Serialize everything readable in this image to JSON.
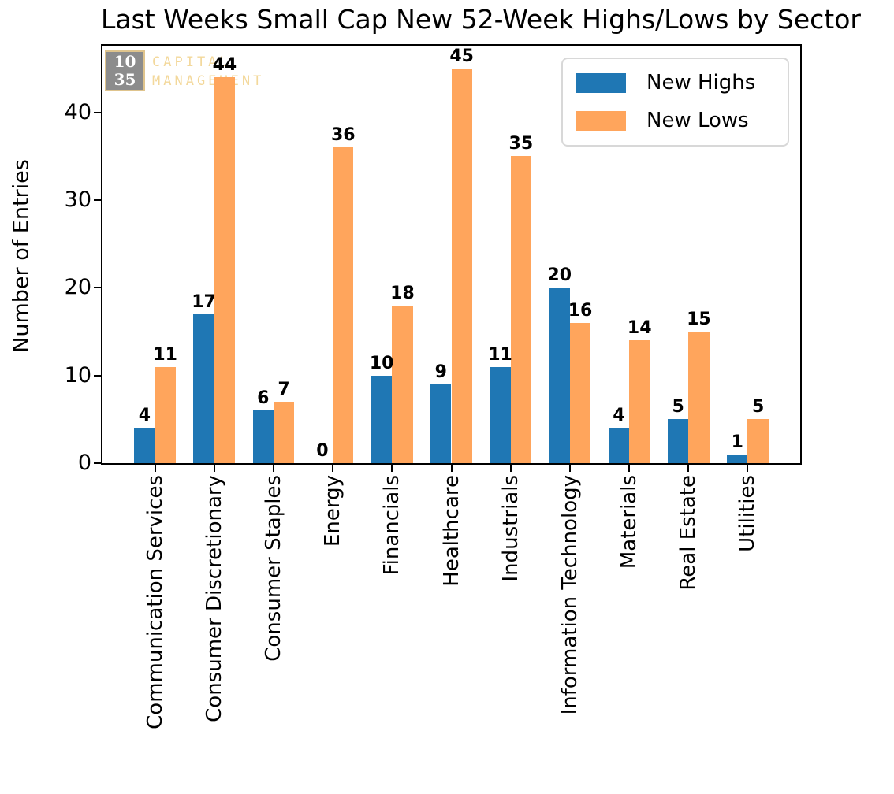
{
  "chart_data": {
    "type": "bar",
    "title": "Last Weeks Small Cap New 52-Week Highs/Lows by Sector",
    "ylabel": "Number of Entries",
    "xlabel": "",
    "categories": [
      "Communication Services",
      "Consumer Discretionary",
      "Consumer Staples",
      "Energy",
      "Financials",
      "Healthcare",
      "Industrials",
      "Information Technology",
      "Materials",
      "Real Estate",
      "Utilities"
    ],
    "series": [
      {
        "name": "New Highs",
        "color": "#1f77b4",
        "values": [
          4,
          17,
          6,
          0,
          10,
          9,
          11,
          20,
          4,
          5,
          1
        ]
      },
      {
        "name": "New Lows",
        "color": "#ffa55c",
        "values": [
          11,
          44,
          7,
          36,
          18,
          45,
          35,
          16,
          14,
          15,
          5
        ]
      }
    ],
    "yticks": [
      0,
      10,
      20,
      30,
      40
    ],
    "ylim": [
      0,
      47.6
    ],
    "xlim": [
      -0.885,
      10.885
    ],
    "bar_width_units": 0.35,
    "grid": false,
    "legend_position": "upper right",
    "bar_value_labels_shown": true
  },
  "watermark": {
    "box_line1": "10",
    "box_line2": "35",
    "line1": "CAPITAL",
    "line2": "MANAGEMENT",
    "box_color": "#8c8c8c",
    "accent_color": "#f3d89b"
  },
  "colors": {
    "new_highs": "#1f77b4",
    "new_lows": "#ffa55c",
    "axis": "#000000",
    "legend_border": "#d8d8d8",
    "background": "#ffffff"
  }
}
